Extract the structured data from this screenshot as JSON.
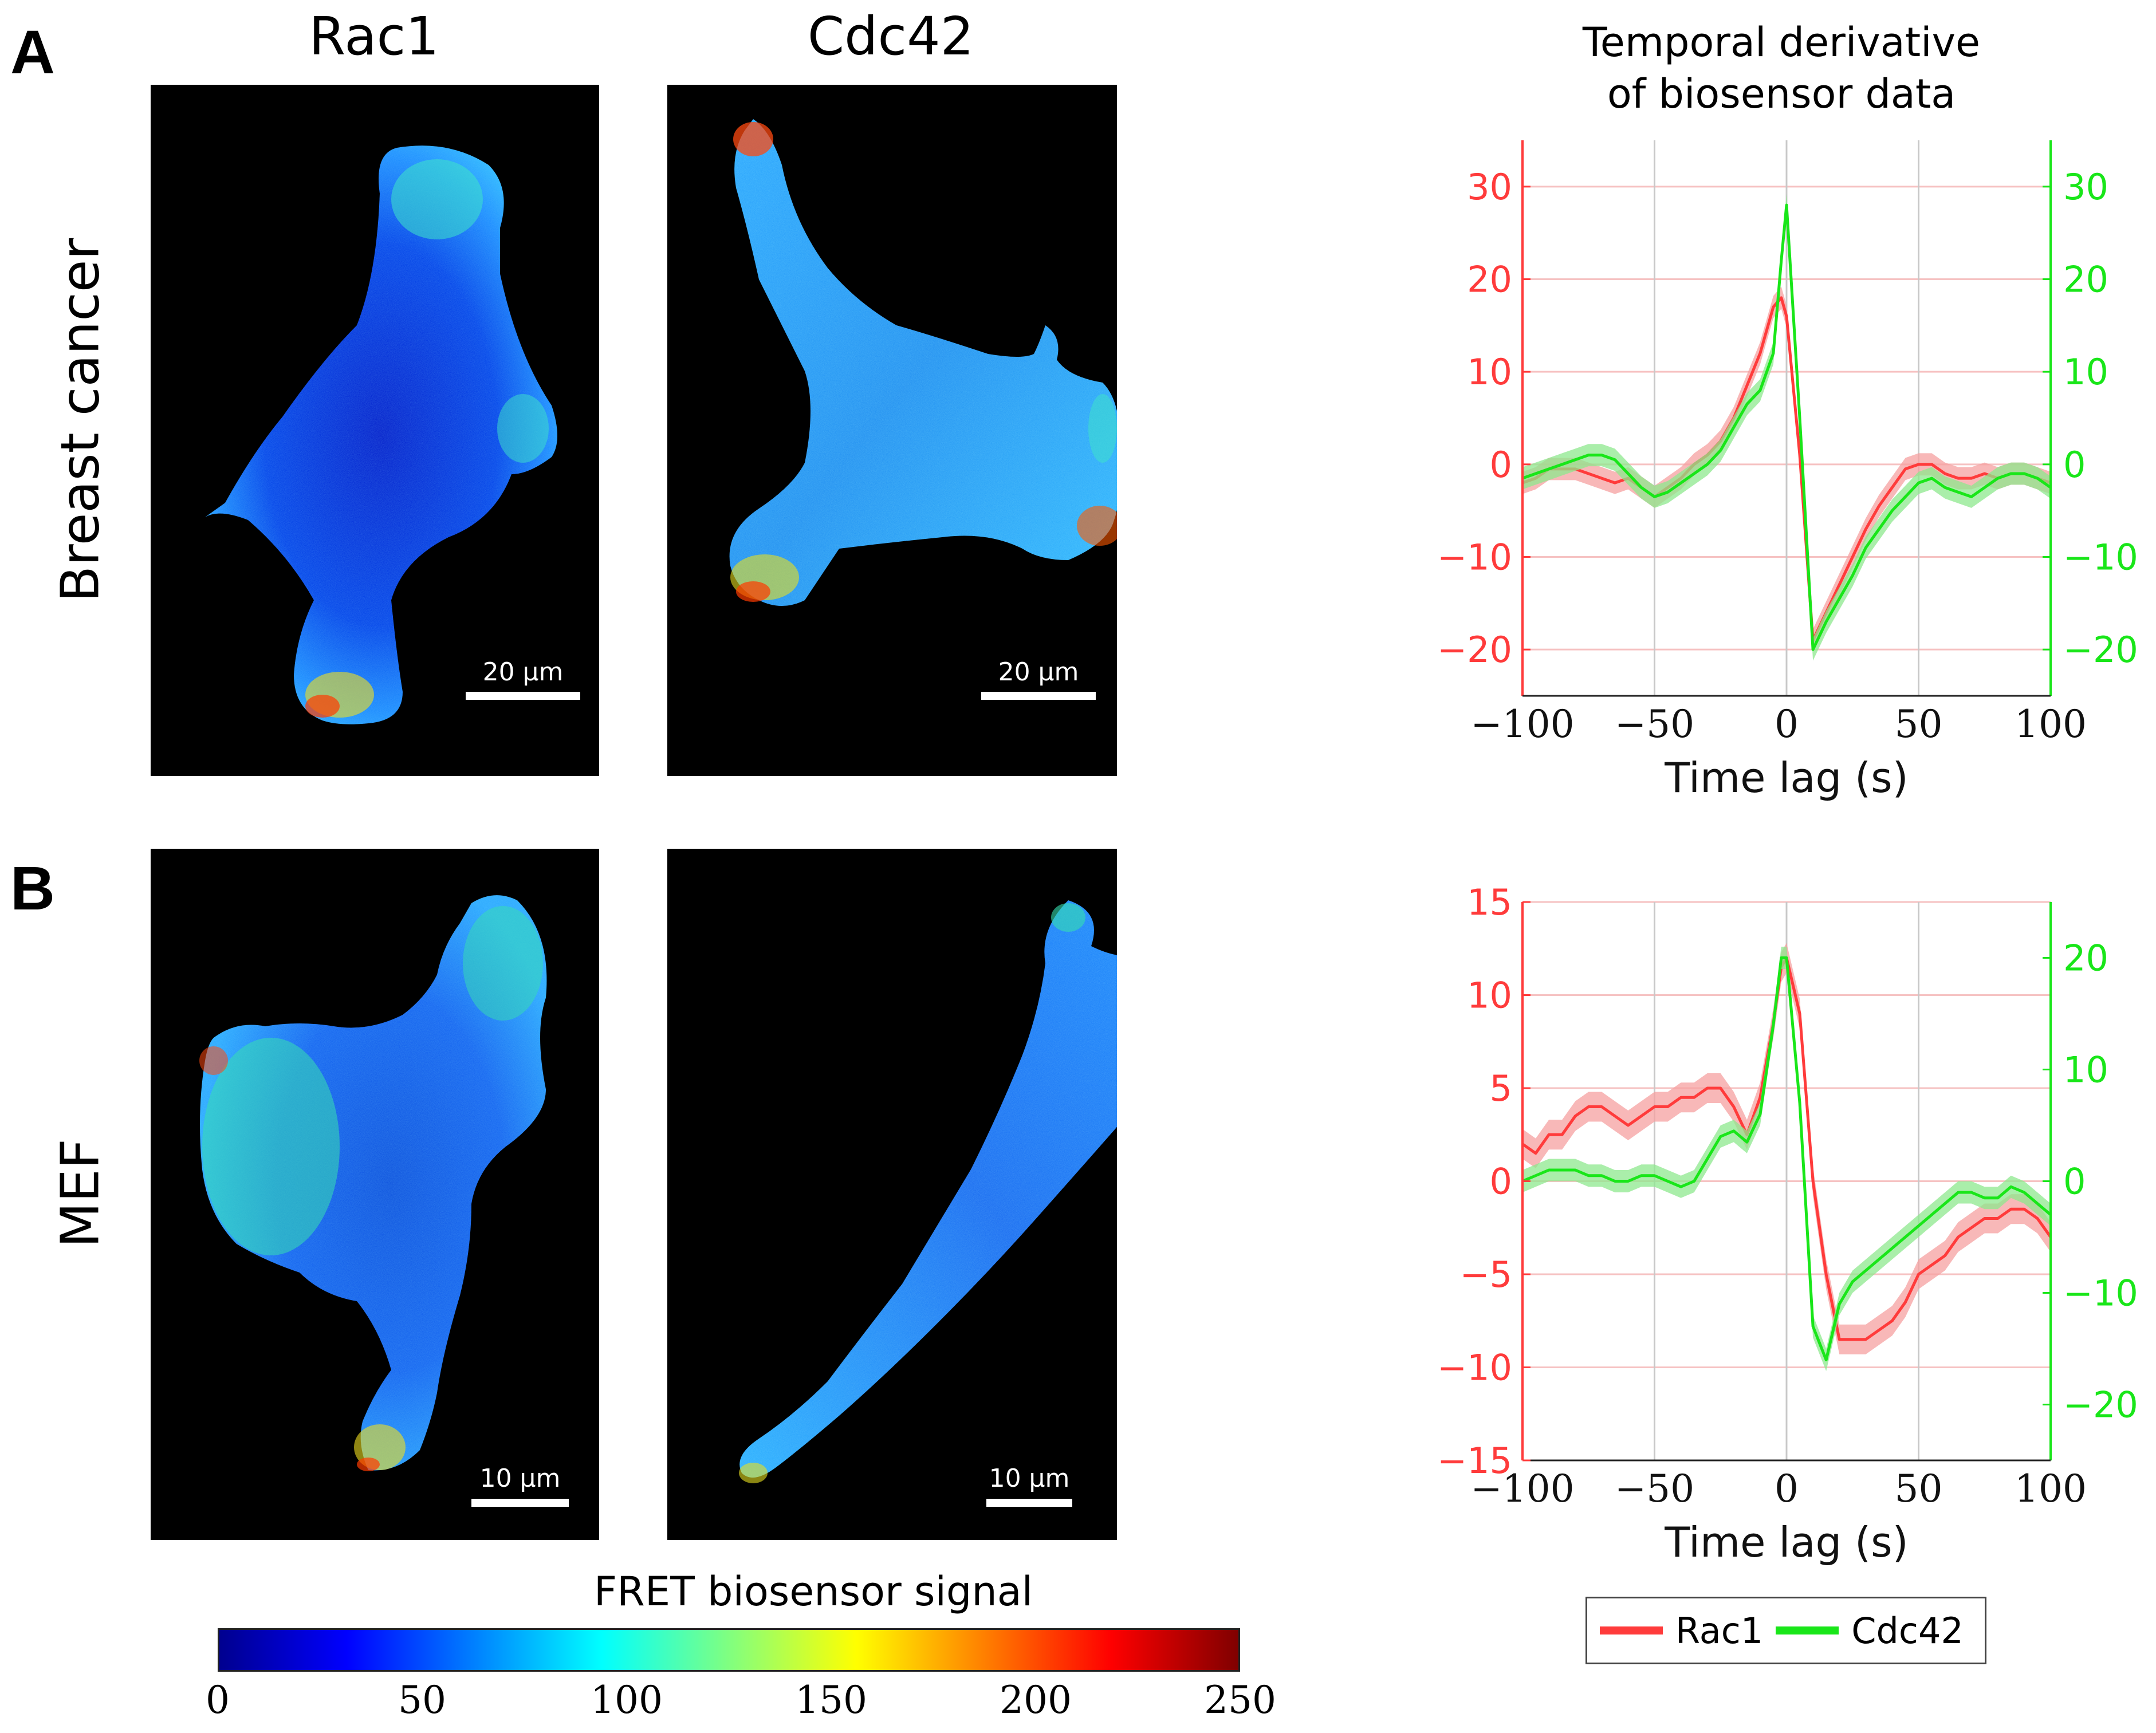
{
  "panels": {
    "a": {
      "letter": "A",
      "row_label": "Breast cancer",
      "rac1_scale": "20 µm",
      "cdc42_scale": "20 µm"
    },
    "b": {
      "letter": "B",
      "row_label": "MEF",
      "rac1_scale": "10 µm",
      "cdc42_scale": "10 µm"
    }
  },
  "columns": {
    "rac1": "Rac1",
    "cdc42": "Cdc42",
    "plot_title_line1": "Temporal derivative",
    "plot_title_line2": "of biosensor data"
  },
  "colorbar": {
    "title": "FRET biosensor signal",
    "ticks": [
      "0",
      "50",
      "100",
      "150",
      "200",
      "250"
    ],
    "range": [
      0,
      250
    ],
    "colormap": "jet"
  },
  "legend": {
    "rac1": "Rac1",
    "cdc42": "Cdc42"
  },
  "colors": {
    "rac1": "#ff3b3b",
    "cdc42": "#19e619",
    "rac1_band": "#f5a0a0",
    "cdc42_band": "#8ee88e"
  },
  "chart_data": [
    {
      "type": "line",
      "panel": "A",
      "title": "Temporal derivative of biosensor data",
      "xlabel": "Time lag (s)",
      "xlim": [
        -100,
        100
      ],
      "xticks": [
        -100,
        -50,
        0,
        50,
        100
      ],
      "xtick_labels": [
        "−100",
        "−50",
        "0",
        "50",
        "100"
      ],
      "ylim_left": [
        -25,
        35
      ],
      "yticks_left": [
        -20,
        -10,
        0,
        10,
        20,
        30
      ],
      "ytick_labels_left": [
        "−20",
        "−10",
        "0",
        "10",
        "20",
        "30"
      ],
      "ylim_right": [
        -25,
        35
      ],
      "yticks_right": [
        -20,
        -10,
        0,
        10,
        20,
        30
      ],
      "ytick_labels_right": [
        "−20",
        "−10",
        "0",
        "10",
        "20",
        "30"
      ],
      "grid": true,
      "series": [
        {
          "name": "Rac1",
          "axis": "left",
          "band": 1.2,
          "x": [
            -100,
            -95,
            -90,
            -85,
            -80,
            -75,
            -70,
            -65,
            -60,
            -55,
            -50,
            -45,
            -40,
            -35,
            -30,
            -25,
            -20,
            -15,
            -10,
            -5,
            -2,
            0,
            5,
            10,
            15,
            20,
            25,
            30,
            35,
            40,
            45,
            50,
            55,
            60,
            65,
            70,
            75,
            80,
            85,
            90,
            95,
            100
          ],
          "y": [
            -2,
            -1.5,
            -0.5,
            -0.5,
            -0.5,
            -1,
            -1.5,
            -2,
            -1.5,
            -2.5,
            -3.5,
            -2.5,
            -1.5,
            0,
            1,
            2.5,
            5,
            8.5,
            12,
            17,
            18,
            16,
            1,
            -19,
            -16,
            -13,
            -10,
            -7,
            -4.5,
            -2.5,
            -0.5,
            0,
            0,
            -1,
            -1.5,
            -1.5,
            -1,
            -1.5,
            -1,
            -1,
            -1.5,
            -2
          ]
        },
        {
          "name": "Cdc42",
          "axis": "right",
          "band": 1.2,
          "x": [
            -100,
            -95,
            -90,
            -85,
            -80,
            -75,
            -70,
            -65,
            -60,
            -55,
            -50,
            -45,
            -40,
            -35,
            -30,
            -25,
            -20,
            -15,
            -10,
            -5,
            -2,
            0,
            5,
            10,
            15,
            20,
            25,
            30,
            35,
            40,
            45,
            50,
            55,
            60,
            65,
            70,
            75,
            80,
            85,
            90,
            95,
            100
          ],
          "y": [
            -1.5,
            -1,
            -0.5,
            0,
            0.5,
            1,
            1,
            0.5,
            -1,
            -2.5,
            -3.5,
            -3,
            -2,
            -1,
            0,
            1.5,
            4,
            6.5,
            8,
            12,
            22,
            28,
            5,
            -20,
            -17,
            -14.5,
            -12,
            -9,
            -7,
            -5,
            -3.5,
            -2,
            -1.5,
            -2.5,
            -3,
            -3.5,
            -2.5,
            -1.5,
            -1,
            -1,
            -1.5,
            -2.5
          ]
        }
      ]
    },
    {
      "type": "line",
      "panel": "B",
      "xlabel": "Time lag (s)",
      "xlim": [
        -100,
        100
      ],
      "xticks": [
        -100,
        -50,
        0,
        50,
        100
      ],
      "xtick_labels": [
        "−100",
        "−50",
        "0",
        "50",
        "100"
      ],
      "ylim_left": [
        -15,
        15
      ],
      "yticks_left": [
        -15,
        -10,
        -5,
        0,
        5,
        10,
        15
      ],
      "ytick_labels_left": [
        "−15",
        "−10",
        "−5",
        "0",
        "5",
        "10",
        "15"
      ],
      "ylim_right": [
        -25,
        25
      ],
      "yticks_right": [
        -20,
        -10,
        0,
        10,
        20
      ],
      "ytick_labels_right": [
        "−20",
        "−10",
        "0",
        "10",
        "20"
      ],
      "grid": true,
      "series": [
        {
          "name": "Rac1",
          "axis": "left",
          "band": 0.8,
          "x": [
            -100,
            -95,
            -90,
            -85,
            -80,
            -75,
            -70,
            -65,
            -60,
            -55,
            -50,
            -45,
            -40,
            -35,
            -30,
            -25,
            -20,
            -15,
            -10,
            -5,
            -2,
            0,
            5,
            10,
            15,
            20,
            25,
            30,
            35,
            40,
            45,
            50,
            55,
            60,
            65,
            70,
            75,
            80,
            85,
            90,
            95,
            100
          ],
          "y": [
            2,
            1.5,
            2.5,
            2.5,
            3.5,
            4,
            4,
            3.5,
            3,
            3.5,
            4,
            4,
            4.5,
            4.5,
            5,
            5,
            4,
            2.5,
            4.5,
            8.5,
            11.5,
            12,
            9,
            0,
            -5,
            -8.5,
            -8.5,
            -8.5,
            -8,
            -7.5,
            -6.5,
            -5,
            -4.5,
            -4,
            -3,
            -2.5,
            -2,
            -2,
            -1.5,
            -1.5,
            -2,
            -3
          ]
        },
        {
          "name": "Cdc42",
          "axis": "right",
          "band": 1.0,
          "x": [
            -100,
            -95,
            -90,
            -85,
            -80,
            -75,
            -70,
            -65,
            -60,
            -55,
            -50,
            -45,
            -40,
            -35,
            -30,
            -25,
            -20,
            -15,
            -10,
            -5,
            -2,
            0,
            5,
            10,
            15,
            20,
            25,
            30,
            35,
            40,
            45,
            50,
            55,
            60,
            65,
            70,
            75,
            80,
            85,
            90,
            95,
            100
          ],
          "y": [
            0,
            0.5,
            1,
            1,
            1,
            0.5,
            0.5,
            0,
            0,
            0.5,
            0.5,
            0,
            -0.5,
            0,
            2,
            4,
            4.5,
            3.5,
            6,
            14,
            20,
            20,
            7,
            -13,
            -16,
            -11,
            -9,
            -8,
            -7,
            -6,
            -5,
            -4,
            -3,
            -2,
            -1,
            -1,
            -1.5,
            -1.5,
            -0.5,
            -1,
            -2,
            -3
          ]
        }
      ]
    }
  ]
}
